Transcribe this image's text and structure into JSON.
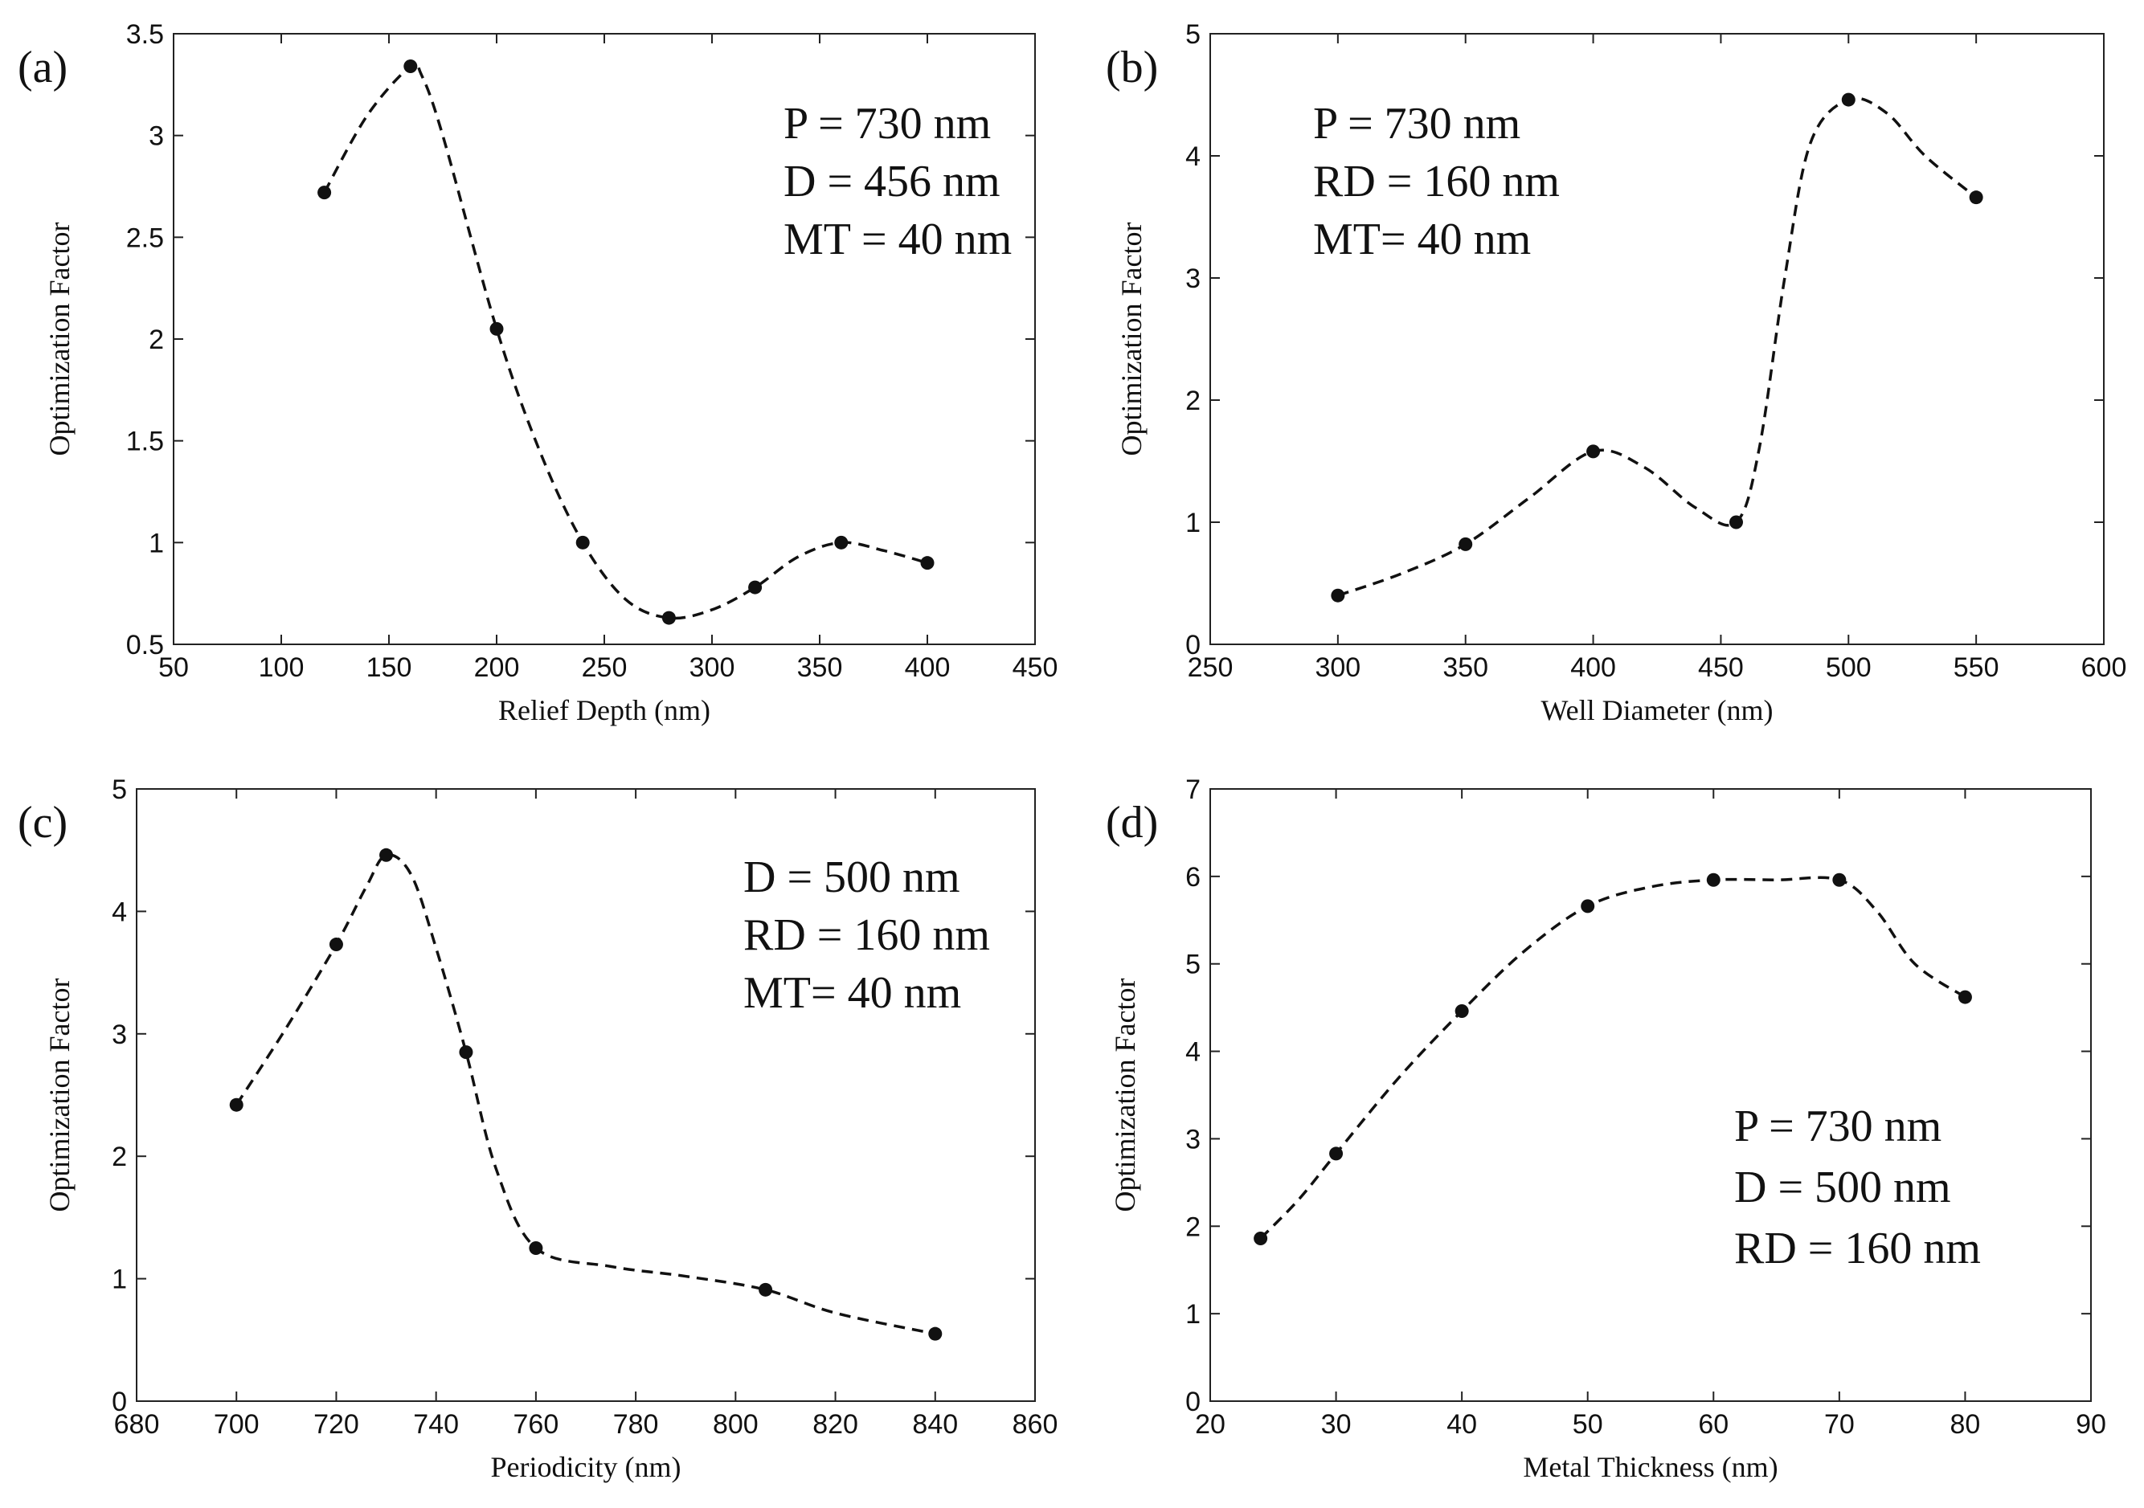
{
  "chart_data": [
    {
      "type": "line",
      "panel_label": "(a)",
      "xlabel": "Relief Depth (nm)",
      "ylabel": "Optimization Factor",
      "xlim": [
        50,
        450
      ],
      "ylim": [
        0.5,
        3.5
      ],
      "xticks": [
        50,
        100,
        150,
        200,
        250,
        300,
        350,
        400,
        450
      ],
      "yticks": [
        0.5,
        1,
        1.5,
        2,
        2.5,
        3,
        3.5
      ],
      "xtick_labels": [
        "50",
        "100",
        "150",
        "200",
        "250",
        "300",
        "350",
        "400",
        "450"
      ],
      "ytick_labels": [
        "0.5",
        "1",
        "1.5",
        "2",
        "2.5",
        "3",
        "3.5"
      ],
      "series": [
        {
          "name": "Optimization Factor",
          "x": [
            120,
            160,
            200,
            240,
            280,
            320,
            360,
            400
          ],
          "y": [
            2.72,
            3.34,
            2.05,
            1.0,
            0.63,
            0.78,
            1.0,
            0.9
          ]
        }
      ],
      "curve": {
        "x": [
          120,
          140,
          160,
          165,
          175,
          200,
          220,
          240,
          260,
          280,
          300,
          320,
          340,
          360,
          380,
          400
        ],
        "y": [
          2.72,
          3.1,
          3.34,
          3.3,
          3.0,
          2.05,
          1.45,
          1.0,
          0.72,
          0.63,
          0.67,
          0.78,
          0.93,
          1.0,
          0.96,
          0.9
        ]
      },
      "annotations": [
        "P = 730 nm",
        "D = 456 nm",
        "MT = 40 nm"
      ],
      "annotation_position": "top-right",
      "grid": false
    },
    {
      "type": "line",
      "panel_label": "(b)",
      "xlabel": "Well Diameter (nm)",
      "ylabel": "Optimization Factor",
      "xlim": [
        250,
        600
      ],
      "ylim": [
        0,
        5
      ],
      "xticks": [
        250,
        300,
        350,
        400,
        450,
        500,
        550,
        600
      ],
      "yticks": [
        0,
        1,
        2,
        3,
        4,
        5
      ],
      "xtick_labels": [
        "250",
        "300",
        "350",
        "400",
        "450",
        "500",
        "550",
        "600"
      ],
      "ytick_labels": [
        "0",
        "1",
        "2",
        "3",
        "4",
        "5"
      ],
      "series": [
        {
          "name": "Optimization Factor",
          "x": [
            300,
            350,
            400,
            456,
            500,
            550
          ],
          "y": [
            0.4,
            0.82,
            1.58,
            1.0,
            4.46,
            3.66
          ]
        }
      ],
      "curve": {
        "x": [
          300,
          325,
          350,
          375,
          400,
          420,
          440,
          456,
          465,
          475,
          485,
          500,
          515,
          530,
          550
        ],
        "y": [
          0.4,
          0.58,
          0.82,
          1.2,
          1.58,
          1.45,
          1.12,
          1.0,
          1.6,
          3.0,
          4.1,
          4.46,
          4.35,
          4.0,
          3.66
        ]
      },
      "annotations": [
        "P = 730 nm",
        "RD = 160 nm",
        "MT= 40 nm"
      ],
      "annotation_position": "top-left",
      "grid": false
    },
    {
      "type": "line",
      "panel_label": "(c)",
      "xlabel": "Periodicity (nm)",
      "ylabel": "Optimization Factor",
      "xlim": [
        680,
        860
      ],
      "ylim": [
        0,
        5
      ],
      "xticks": [
        680,
        700,
        720,
        740,
        760,
        780,
        800,
        820,
        840,
        860
      ],
      "yticks": [
        0,
        1,
        2,
        3,
        4,
        5
      ],
      "xtick_labels": [
        "680",
        "700",
        "720",
        "740",
        "760",
        "780",
        "800",
        "820",
        "840",
        "860"
      ],
      "ytick_labels": [
        "0",
        "1",
        "2",
        "3",
        "4",
        "5"
      ],
      "series": [
        {
          "name": "Optimization Factor",
          "x": [
            700,
            720,
            730,
            746,
            760,
            806,
            840
          ],
          "y": [
            2.42,
            3.73,
            4.46,
            2.85,
            1.25,
            0.91,
            0.55
          ]
        }
      ],
      "curve": {
        "x": [
          700,
          710,
          720,
          726,
          730,
          735,
          740,
          746,
          752,
          760,
          775,
          790,
          806,
          820,
          840
        ],
        "y": [
          2.42,
          3.05,
          3.73,
          4.2,
          4.46,
          4.3,
          3.7,
          2.85,
          1.9,
          1.25,
          1.1,
          1.02,
          0.91,
          0.72,
          0.55
        ]
      },
      "annotations": [
        "D = 500 nm",
        "RD = 160 nm",
        "MT= 40 nm"
      ],
      "annotation_position": "top-right",
      "grid": false
    },
    {
      "type": "line",
      "panel_label": "(d)",
      "xlabel": "Metal Thickness (nm)",
      "ylabel": "Optimization Factor",
      "xlim": [
        20,
        90
      ],
      "ylim": [
        0,
        7
      ],
      "xticks": [
        20,
        30,
        40,
        50,
        60,
        70,
        80,
        90
      ],
      "yticks": [
        0,
        1,
        2,
        3,
        4,
        5,
        6,
        7
      ],
      "xtick_labels": [
        "20",
        "30",
        "40",
        "50",
        "60",
        "70",
        "80",
        "90"
      ],
      "ytick_labels": [
        "0",
        "1",
        "2",
        "3",
        "4",
        "5",
        "6",
        "7"
      ],
      "series": [
        {
          "name": "Optimization Factor",
          "x": [
            24,
            30,
            40,
            50,
            60,
            70,
            80
          ],
          "y": [
            1.86,
            2.83,
            4.46,
            5.66,
            5.96,
            5.96,
            4.62
          ]
        }
      ],
      "curve": {
        "x": [
          24,
          27,
          30,
          35,
          40,
          45,
          50,
          55,
          60,
          65,
          70,
          73,
          76,
          80
        ],
        "y": [
          1.86,
          2.3,
          2.83,
          3.7,
          4.46,
          5.15,
          5.66,
          5.88,
          5.96,
          5.96,
          5.96,
          5.6,
          5.0,
          4.62
        ]
      },
      "annotations": [
        "P = 730 nm",
        "D = 500 nm",
        "RD = 160 nm"
      ],
      "annotation_position": "bottom-right",
      "grid": false
    }
  ]
}
